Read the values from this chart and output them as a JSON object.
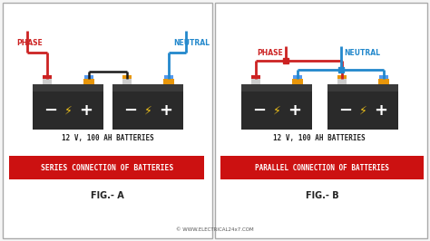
{
  "background_color": "#f5f5f5",
  "panel_bg": "#ffffff",
  "battery_body_color": "#2a2a2a",
  "battery_top_color": "#3a3a3a",
  "terminal_neg_color": "#cccccc",
  "terminal_pos_color": "#e8960a",
  "terminal_neg2_color": "#5599ee",
  "bolt_color": "#f5c518",
  "phase_color": "#cc2222",
  "neutral_color": "#2288cc",
  "connection_color": "#1a1a1a",
  "red_box_color": "#cc1111",
  "label_a_title": "SERIES CONNECTION OF BATTERIES",
  "label_b_title": "PARALLEL CONNECTION OF BATTERIES",
  "fig_a_label": "FIG.- A",
  "fig_b_label": "FIG.- B",
  "battery_label": "12 V, 100 AH BATTERIES",
  "phase_text": "PHASE",
  "neutral_text": "NEUTRAL",
  "watermark": "© WWW.ELECTRICAL24x7.COM",
  "border_color": "#aaaaaa"
}
